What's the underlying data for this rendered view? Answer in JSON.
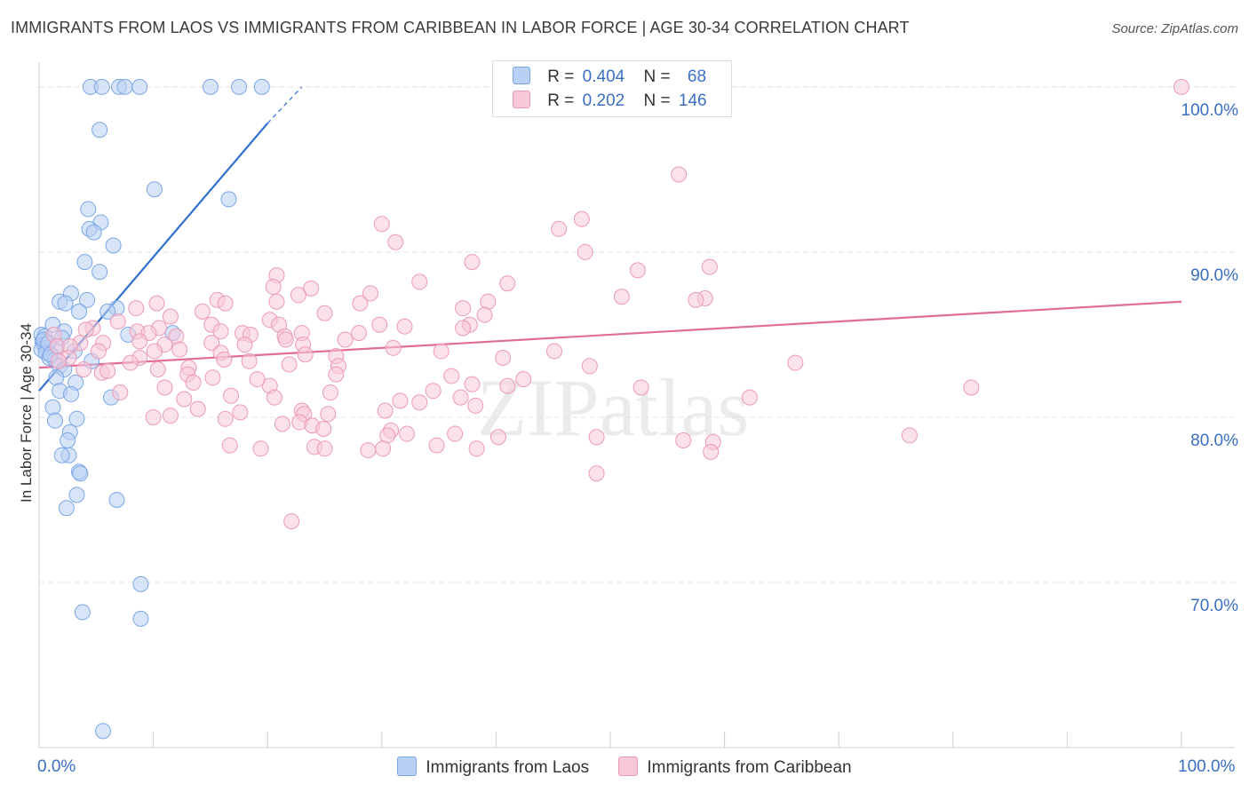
{
  "chart_data": {
    "type": "scatter",
    "title": "IMMIGRANTS FROM LAOS VS IMMIGRANTS FROM CARIBBEAN IN LABOR FORCE | AGE 30-34 CORRELATION CHART",
    "source": "Source: ZipAtlas.com",
    "ylabel": "In Labor Force | Age 30-34",
    "xlabel": "",
    "xlim": [
      0,
      100
    ],
    "ylim": [
      60,
      101.5
    ],
    "x_tick_labels": [
      "0.0%",
      "100.0%"
    ],
    "y_ticks": [
      70,
      80,
      90,
      100
    ],
    "y_tick_labels": [
      "70.0%",
      "80.0%",
      "90.0%",
      "100.0%"
    ],
    "watermark": "ZIPatlas",
    "legend": {
      "rows": [
        {
          "r_label": "R =",
          "r_value": "0.404",
          "n_label": "N =",
          "n_value": "68"
        },
        {
          "r_label": "R =",
          "r_value": "0.202",
          "n_label": "N =",
          "n_value": "146"
        }
      ]
    },
    "series": [
      {
        "name": "Immigrants from Laos",
        "color": "#7aa6e6",
        "fill": "#b8d0f3",
        "line_color": "#2f6fd0",
        "trend": {
          "x0": 0,
          "y0": 81.6,
          "x1": 20,
          "y1": 97.8,
          "dash_x1": 23,
          "dash_y1": 100
        },
        "points": [
          [
            4.5,
            100
          ],
          [
            5.5,
            100
          ],
          [
            7,
            100
          ],
          [
            7.5,
            100
          ],
          [
            8.8,
            100
          ],
          [
            15,
            100
          ],
          [
            17.5,
            100
          ],
          [
            19.5,
            100
          ],
          [
            5.3,
            97.4
          ],
          [
            10.1,
            93.8
          ],
          [
            16.6,
            93.2
          ],
          [
            4.3,
            92.6
          ],
          [
            5.4,
            91.8
          ],
          [
            4.4,
            91.4
          ],
          [
            4.8,
            91.2
          ],
          [
            6.5,
            90.4
          ],
          [
            4.0,
            89.4
          ],
          [
            5.3,
            88.8
          ],
          [
            2.8,
            87.5
          ],
          [
            4.2,
            87.1
          ],
          [
            1.8,
            87.0
          ],
          [
            2.3,
            86.9
          ],
          [
            6.8,
            86.6
          ],
          [
            6.0,
            86.4
          ],
          [
            3.5,
            86.4
          ],
          [
            1.2,
            85.6
          ],
          [
            2.2,
            85.2
          ],
          [
            11.7,
            85.1
          ],
          [
            7.8,
            85.0
          ],
          [
            0.2,
            85.0
          ],
          [
            0.5,
            84.9
          ],
          [
            0.3,
            84.6
          ],
          [
            0.4,
            84.4
          ],
          [
            0.6,
            84.2
          ],
          [
            1.5,
            84.3
          ],
          [
            0.2,
            84.1
          ],
          [
            3.1,
            84.0
          ],
          [
            0.6,
            83.9
          ],
          [
            0.9,
            83.6
          ],
          [
            1.4,
            83.5
          ],
          [
            4.6,
            83.4
          ],
          [
            1.8,
            83.1
          ],
          [
            2.2,
            82.9
          ],
          [
            1.5,
            82.4
          ],
          [
            3.2,
            82.1
          ],
          [
            1.8,
            81.6
          ],
          [
            2.8,
            81.4
          ],
          [
            6.3,
            81.2
          ],
          [
            1.2,
            80.6
          ],
          [
            3.3,
            79.9
          ],
          [
            1.4,
            79.8
          ],
          [
            2.7,
            79.1
          ],
          [
            2.5,
            78.6
          ],
          [
            2.6,
            77.7
          ],
          [
            2.0,
            77.7
          ],
          [
            3.5,
            76.7
          ],
          [
            3.6,
            76.6
          ],
          [
            3.3,
            75.3
          ],
          [
            6.8,
            75.0
          ],
          [
            2.4,
            74.5
          ],
          [
            8.9,
            69.9
          ],
          [
            3.8,
            68.2
          ],
          [
            8.9,
            67.8
          ],
          [
            5.6,
            61.0
          ],
          [
            0.4,
            84.7
          ],
          [
            0.8,
            84.5
          ],
          [
            1.0,
            83.8
          ],
          [
            2.0,
            84.8
          ]
        ]
      },
      {
        "name": "Immigrants from Caribbean",
        "color": "#ec9ab6",
        "fill": "#f7c9d8",
        "line_color": "#e06d99",
        "trend": {
          "x0": 0,
          "y0": 83.0,
          "x1": 100,
          "y1": 87.0
        },
        "points": [
          [
            100,
            100
          ],
          [
            56,
            94.7
          ],
          [
            30,
            91.7
          ],
          [
            47.5,
            92.0
          ],
          [
            45.5,
            91.4
          ],
          [
            31.2,
            90.6
          ],
          [
            47.8,
            90.0
          ],
          [
            37.9,
            89.4
          ],
          [
            58.7,
            89.1
          ],
          [
            52.4,
            88.9
          ],
          [
            20.8,
            88.6
          ],
          [
            33.3,
            88.2
          ],
          [
            41.0,
            88.1
          ],
          [
            20.5,
            87.9
          ],
          [
            23.8,
            87.8
          ],
          [
            22.7,
            87.4
          ],
          [
            29.0,
            87.5
          ],
          [
            51.0,
            87.3
          ],
          [
            58.3,
            87.2
          ],
          [
            57.5,
            87.1
          ],
          [
            10.3,
            86.9
          ],
          [
            15.6,
            87.1
          ],
          [
            20.8,
            87.0
          ],
          [
            39.3,
            87.0
          ],
          [
            16.3,
            86.9
          ],
          [
            28.1,
            86.9
          ],
          [
            37.1,
            86.6
          ],
          [
            8.5,
            86.6
          ],
          [
            14.3,
            86.4
          ],
          [
            25.0,
            86.3
          ],
          [
            39.0,
            86.2
          ],
          [
            11.5,
            86.1
          ],
          [
            20.2,
            85.9
          ],
          [
            21.0,
            85.6
          ],
          [
            29.8,
            85.6
          ],
          [
            37.7,
            85.6
          ],
          [
            6.9,
            85.8
          ],
          [
            15.1,
            85.6
          ],
          [
            10.5,
            85.4
          ],
          [
            37.1,
            85.4
          ],
          [
            8.6,
            85.2
          ],
          [
            23.0,
            85.1
          ],
          [
            4.7,
            85.4
          ],
          [
            4.1,
            85.3
          ],
          [
            9.6,
            85.1
          ],
          [
            28.0,
            85.1
          ],
          [
            1.3,
            85.0
          ],
          [
            15.9,
            85.2
          ],
          [
            17.8,
            85.1
          ],
          [
            18.5,
            85.0
          ],
          [
            21.5,
            84.9
          ],
          [
            12.0,
            84.9
          ],
          [
            26.8,
            84.7
          ],
          [
            21.6,
            84.7
          ],
          [
            8.8,
            84.6
          ],
          [
            15.1,
            84.5
          ],
          [
            5.6,
            84.5
          ],
          [
            11.0,
            84.4
          ],
          [
            3.6,
            84.5
          ],
          [
            18.0,
            84.4
          ],
          [
            23.1,
            84.4
          ],
          [
            1.6,
            84.3
          ],
          [
            2.7,
            84.3
          ],
          [
            31.0,
            84.2
          ],
          [
            45.1,
            84.0
          ],
          [
            35.2,
            84.0
          ],
          [
            12.3,
            84.1
          ],
          [
            10.1,
            84.0
          ],
          [
            5.2,
            84.0
          ],
          [
            15.9,
            83.9
          ],
          [
            23.3,
            83.8
          ],
          [
            26.0,
            83.7
          ],
          [
            2.6,
            83.6
          ],
          [
            40.6,
            83.6
          ],
          [
            8.8,
            83.6
          ],
          [
            16.2,
            83.5
          ],
          [
            18.4,
            83.4
          ],
          [
            8.0,
            83.3
          ],
          [
            21.9,
            83.2
          ],
          [
            26.2,
            83.1
          ],
          [
            48.2,
            83.1
          ],
          [
            13.1,
            83.0
          ],
          [
            3.9,
            82.9
          ],
          [
            10.4,
            82.9
          ],
          [
            5.5,
            82.7
          ],
          [
            13.0,
            82.6
          ],
          [
            26.0,
            82.6
          ],
          [
            36.1,
            82.5
          ],
          [
            15.2,
            82.4
          ],
          [
            42.4,
            82.3
          ],
          [
            13.5,
            82.1
          ],
          [
            37.9,
            82.0
          ],
          [
            41.0,
            81.9
          ],
          [
            20.2,
            81.9
          ],
          [
            11.0,
            81.8
          ],
          [
            52.7,
            81.8
          ],
          [
            34.5,
            81.6
          ],
          [
            16.8,
            81.3
          ],
          [
            25.5,
            81.5
          ],
          [
            36.9,
            81.2
          ],
          [
            12.7,
            81.1
          ],
          [
            7.1,
            81.5
          ],
          [
            31.6,
            81.0
          ],
          [
            33.3,
            80.9
          ],
          [
            38.2,
            80.7
          ],
          [
            13.9,
            80.5
          ],
          [
            23.0,
            80.4
          ],
          [
            23.2,
            80.2
          ],
          [
            17.6,
            80.3
          ],
          [
            25.3,
            80.2
          ],
          [
            30.3,
            80.4
          ],
          [
            11.5,
            80.1
          ],
          [
            10.0,
            80.0
          ],
          [
            16.3,
            79.9
          ],
          [
            22.8,
            79.7
          ],
          [
            23.9,
            79.5
          ],
          [
            21.3,
            79.6
          ],
          [
            24.9,
            79.3
          ],
          [
            30.8,
            79.2
          ],
          [
            32.2,
            79.0
          ],
          [
            36.4,
            79.0
          ],
          [
            30.5,
            78.9
          ],
          [
            40.2,
            78.8
          ],
          [
            48.8,
            78.8
          ],
          [
            56.4,
            78.6
          ],
          [
            59.0,
            78.5
          ],
          [
            16.7,
            78.3
          ],
          [
            19.4,
            78.1
          ],
          [
            24.1,
            78.2
          ],
          [
            25.0,
            78.1
          ],
          [
            28.8,
            78.0
          ],
          [
            34.8,
            78.3
          ],
          [
            38.3,
            78.1
          ],
          [
            30.1,
            78.1
          ],
          [
            58.8,
            77.9
          ],
          [
            20.6,
            81.2
          ],
          [
            48.8,
            76.6
          ],
          [
            22.1,
            73.7
          ],
          [
            76.2,
            78.9
          ],
          [
            81.6,
            81.8
          ],
          [
            62.2,
            81.2
          ],
          [
            66.2,
            83.3
          ],
          [
            32.0,
            85.5
          ],
          [
            19.1,
            82.3
          ],
          [
            6.0,
            82.8
          ],
          [
            1.7,
            83.4
          ]
        ]
      }
    ]
  },
  "bottom_legend": {
    "items": [
      {
        "label": "Immigrants from Laos",
        "color": "#b8d0f3",
        "border": "#7aa6e6"
      },
      {
        "label": "Immigrants from Caribbean",
        "color": "#f7c9d8",
        "border": "#ec9ab6"
      }
    ]
  }
}
